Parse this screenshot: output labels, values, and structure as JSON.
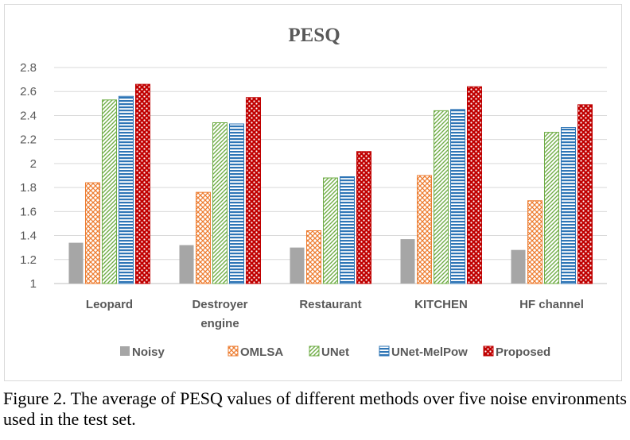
{
  "chart_data": {
    "type": "bar",
    "title": "PESQ",
    "xlabel": "",
    "ylabel": "",
    "ylim": [
      1,
      2.8
    ],
    "yticks": [
      "1",
      "1.2",
      "1.4",
      "1.6",
      "1.8",
      "2",
      "2.2",
      "2.4",
      "2.6",
      "2.8"
    ],
    "grid": true,
    "legend": "bottom",
    "categories": [
      [
        "Leopard"
      ],
      [
        "Destroyer",
        "engine"
      ],
      [
        "Restaurant"
      ],
      [
        "KITCHEN"
      ],
      [
        "HF channel"
      ]
    ],
    "series": [
      {
        "name": "Noisy",
        "pattern": "solid",
        "color": "#a6a6a6",
        "values": [
          1.34,
          1.32,
          1.3,
          1.37,
          1.28
        ]
      },
      {
        "name": "OMLSA",
        "pattern": "crosshatch",
        "color": "#ed7d31",
        "values": [
          1.84,
          1.76,
          1.44,
          1.9,
          1.69
        ]
      },
      {
        "name": "UNet",
        "pattern": "diagonal",
        "color": "#70ad47",
        "values": [
          2.53,
          2.34,
          1.88,
          2.44,
          2.26
        ]
      },
      {
        "name": "UNet-MelPow",
        "pattern": "horizontal",
        "color": "#2e75b6",
        "values": [
          2.56,
          2.33,
          1.89,
          2.45,
          2.3
        ]
      },
      {
        "name": "Proposed",
        "pattern": "dots",
        "color": "#c00000",
        "values": [
          2.66,
          2.55,
          2.1,
          2.64,
          2.49
        ]
      }
    ]
  },
  "caption": "Figure 2. The average of PESQ values of different methods over five noise environments used in the test set."
}
